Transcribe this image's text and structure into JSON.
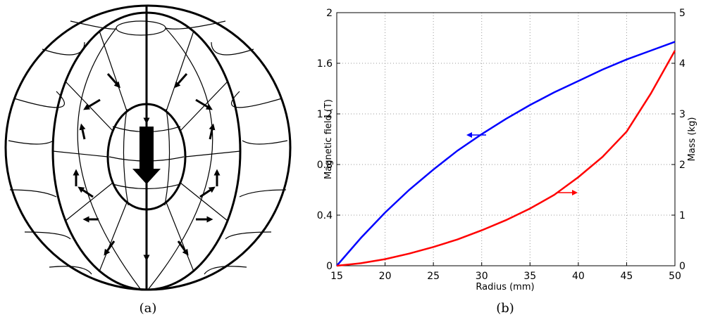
{
  "captions": [
    "(a)",
    "(b)"
  ],
  "chart_data": {
    "type": "line",
    "xlabel": "Radius (mm)",
    "ylabel": "Magnetic field (T)",
    "y2label": "Mass (kg)",
    "x": [
      15,
      17.5,
      20,
      22.5,
      25,
      27.5,
      30,
      32.5,
      35,
      37.5,
      40,
      42.5,
      45,
      47.5,
      50
    ],
    "series": [
      {
        "color": "#0000ff",
        "values": [
          0,
          0.22,
          0.42,
          0.6,
          0.76,
          0.91,
          1.04,
          1.16,
          1.27,
          1.37,
          1.46,
          1.55,
          1.63,
          1.7,
          1.77
        ]
      },
      {
        "color": "#ff0000",
        "axis": "y2",
        "values": [
          0,
          0.05,
          0.13,
          0.24,
          0.37,
          0.52,
          0.7,
          0.9,
          1.13,
          1.4,
          1.75,
          2.15,
          2.65,
          3.4,
          4.25
        ]
      }
    ],
    "xlim": [
      15,
      50
    ],
    "xticks": [
      15,
      20,
      25,
      30,
      35,
      40,
      45,
      50
    ],
    "ylim": [
      0,
      2
    ],
    "yticks": [
      0,
      0.4,
      0.8,
      1.2,
      1.6,
      2
    ],
    "y2lim": [
      0,
      5
    ],
    "y2ticks": [
      0,
      1,
      2,
      3,
      4,
      5
    ],
    "grid": true
  }
}
